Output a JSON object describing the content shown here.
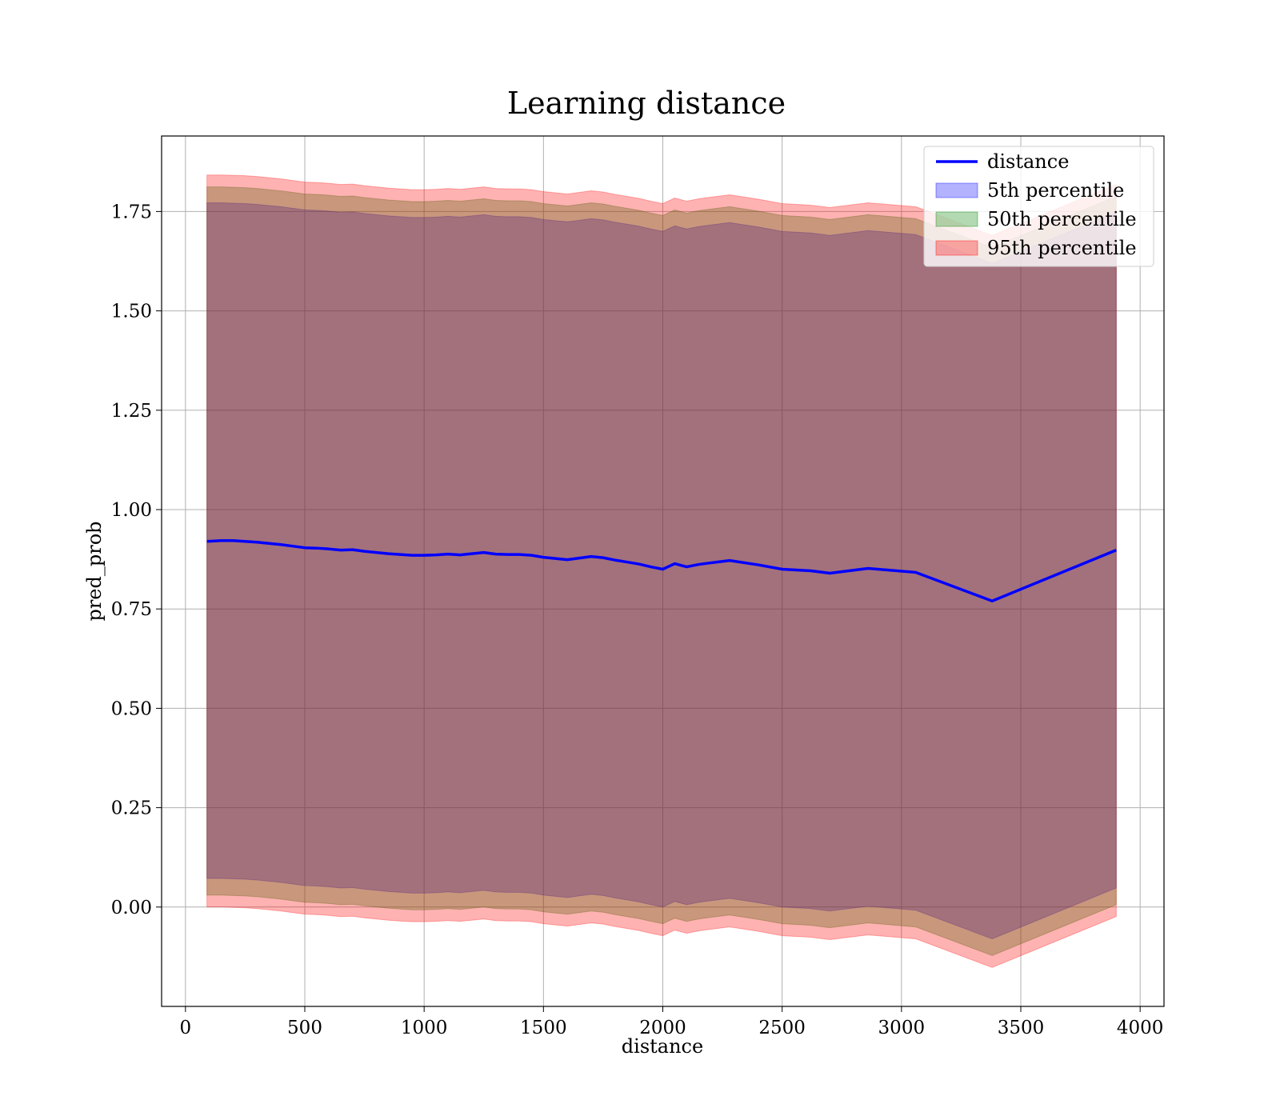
{
  "chart_data": {
    "type": "area",
    "title": "Learning distance",
    "xlabel": "distance",
    "ylabel": "pred_prob",
    "xlim": [
      -100,
      4100
    ],
    "ylim": [
      -0.25,
      1.94
    ],
    "xticks": [
      0,
      500,
      1000,
      1500,
      2000,
      2500,
      3000,
      3500,
      4000
    ],
    "xtick_labels": [
      "0",
      "500",
      "1000",
      "1500",
      "2000",
      "2500",
      "3000",
      "3500",
      "4000"
    ],
    "yticks": [
      0.0,
      0.25,
      0.5,
      0.75,
      1.0,
      1.25,
      1.5,
      1.75
    ],
    "ytick_labels": [
      "0.00",
      "0.25",
      "0.50",
      "0.75",
      "1.00",
      "1.25",
      "1.50",
      "1.75"
    ],
    "grid": true,
    "legend_position": "top-right",
    "x": [
      90,
      150,
      200,
      250,
      300,
      350,
      400,
      450,
      500,
      550,
      600,
      650,
      700,
      750,
      800,
      850,
      900,
      950,
      1000,
      1050,
      1100,
      1150,
      1200,
      1250,
      1300,
      1350,
      1400,
      1450,
      1500,
      1550,
      1600,
      1650,
      1700,
      1750,
      1800,
      1850,
      1900,
      1950,
      2000,
      2050,
      2100,
      2150,
      2200,
      2280,
      2400,
      2500,
      2620,
      2700,
      2860,
      3060,
      3380,
      3900
    ],
    "series": [
      {
        "name": "distance",
        "kind": "line",
        "color": "#0000ff",
        "values": [
          0.92,
          0.922,
          0.922,
          0.92,
          0.918,
          0.915,
          0.912,
          0.908,
          0.904,
          0.903,
          0.901,
          0.898,
          0.899,
          0.895,
          0.892,
          0.889,
          0.887,
          0.885,
          0.885,
          0.886,
          0.888,
          0.886,
          0.889,
          0.892,
          0.888,
          0.887,
          0.887,
          0.885,
          0.88,
          0.877,
          0.874,
          0.878,
          0.882,
          0.879,
          0.873,
          0.868,
          0.863,
          0.856,
          0.85,
          0.864,
          0.856,
          0.862,
          0.866,
          0.872,
          0.861,
          0.85,
          0.846,
          0.84,
          0.852,
          0.842,
          0.77,
          0.898
        ]
      },
      {
        "name": "5th percentile",
        "kind": "band",
        "color": "#0000ff",
        "alpha": 0.3,
        "lower": [
          0.072,
          0.072,
          0.071,
          0.07,
          0.068,
          0.065,
          0.062,
          0.058,
          0.054,
          0.053,
          0.051,
          0.048,
          0.049,
          0.045,
          0.042,
          0.039,
          0.037,
          0.035,
          0.035,
          0.036,
          0.038,
          0.036,
          0.039,
          0.042,
          0.038,
          0.037,
          0.037,
          0.035,
          0.03,
          0.027,
          0.024,
          0.028,
          0.032,
          0.029,
          0.023,
          0.018,
          0.013,
          0.006,
          0.0,
          0.014,
          0.006,
          0.012,
          0.016,
          0.022,
          0.011,
          0.0,
          -0.004,
          -0.01,
          0.002,
          -0.008,
          -0.08,
          0.048
        ],
        "upper": [
          1.772,
          1.772,
          1.771,
          1.77,
          1.768,
          1.765,
          1.762,
          1.758,
          1.754,
          1.753,
          1.751,
          1.748,
          1.749,
          1.745,
          1.742,
          1.739,
          1.737,
          1.735,
          1.735,
          1.736,
          1.738,
          1.736,
          1.739,
          1.742,
          1.738,
          1.737,
          1.737,
          1.735,
          1.73,
          1.727,
          1.724,
          1.728,
          1.732,
          1.729,
          1.723,
          1.718,
          1.713,
          1.706,
          1.7,
          1.714,
          1.706,
          1.712,
          1.716,
          1.722,
          1.711,
          1.7,
          1.696,
          1.69,
          1.702,
          1.692,
          1.62,
          1.748
        ]
      },
      {
        "name": "50th percentile",
        "kind": "band",
        "color": "#008000",
        "alpha": 0.3,
        "lower": [
          0.03,
          0.03,
          0.029,
          0.028,
          0.026,
          0.023,
          0.02,
          0.016,
          0.012,
          0.011,
          0.009,
          0.006,
          0.007,
          0.003,
          0.0,
          -0.003,
          -0.005,
          -0.007,
          -0.007,
          -0.006,
          -0.004,
          -0.006,
          -0.003,
          0.0,
          -0.004,
          -0.005,
          -0.005,
          -0.007,
          -0.012,
          -0.015,
          -0.018,
          -0.014,
          -0.01,
          -0.013,
          -0.019,
          -0.024,
          -0.029,
          -0.036,
          -0.042,
          -0.028,
          -0.036,
          -0.03,
          -0.026,
          -0.02,
          -0.031,
          -0.042,
          -0.046,
          -0.052,
          -0.04,
          -0.05,
          -0.122,
          0.006
        ],
        "upper": [
          1.812,
          1.812,
          1.811,
          1.81,
          1.808,
          1.805,
          1.802,
          1.798,
          1.794,
          1.793,
          1.791,
          1.788,
          1.789,
          1.785,
          1.782,
          1.779,
          1.777,
          1.775,
          1.775,
          1.776,
          1.778,
          1.776,
          1.779,
          1.782,
          1.778,
          1.777,
          1.777,
          1.775,
          1.77,
          1.767,
          1.764,
          1.768,
          1.772,
          1.769,
          1.763,
          1.758,
          1.753,
          1.746,
          1.74,
          1.754,
          1.746,
          1.752,
          1.756,
          1.762,
          1.751,
          1.74,
          1.736,
          1.73,
          1.742,
          1.732,
          1.66,
          1.788
        ]
      },
      {
        "name": "95th percentile",
        "kind": "band",
        "color": "#ff0000",
        "alpha": 0.3,
        "lower": [
          0.0,
          0.0,
          -0.001,
          -0.002,
          -0.004,
          -0.007,
          -0.01,
          -0.014,
          -0.018,
          -0.019,
          -0.021,
          -0.024,
          -0.023,
          -0.027,
          -0.03,
          -0.033,
          -0.035,
          -0.037,
          -0.037,
          -0.036,
          -0.034,
          -0.036,
          -0.033,
          -0.03,
          -0.034,
          -0.035,
          -0.035,
          -0.037,
          -0.042,
          -0.045,
          -0.048,
          -0.044,
          -0.04,
          -0.043,
          -0.049,
          -0.054,
          -0.059,
          -0.066,
          -0.072,
          -0.058,
          -0.066,
          -0.06,
          -0.056,
          -0.05,
          -0.061,
          -0.072,
          -0.076,
          -0.082,
          -0.07,
          -0.08,
          -0.152,
          -0.024
        ],
        "upper": [
          1.842,
          1.842,
          1.841,
          1.84,
          1.838,
          1.835,
          1.832,
          1.828,
          1.824,
          1.823,
          1.821,
          1.818,
          1.819,
          1.815,
          1.812,
          1.809,
          1.807,
          1.805,
          1.805,
          1.806,
          1.808,
          1.806,
          1.809,
          1.812,
          1.808,
          1.807,
          1.807,
          1.805,
          1.8,
          1.797,
          1.794,
          1.798,
          1.802,
          1.799,
          1.793,
          1.788,
          1.783,
          1.776,
          1.77,
          1.784,
          1.776,
          1.782,
          1.786,
          1.792,
          1.781,
          1.77,
          1.766,
          1.76,
          1.772,
          1.762,
          1.69,
          1.818
        ]
      }
    ]
  }
}
